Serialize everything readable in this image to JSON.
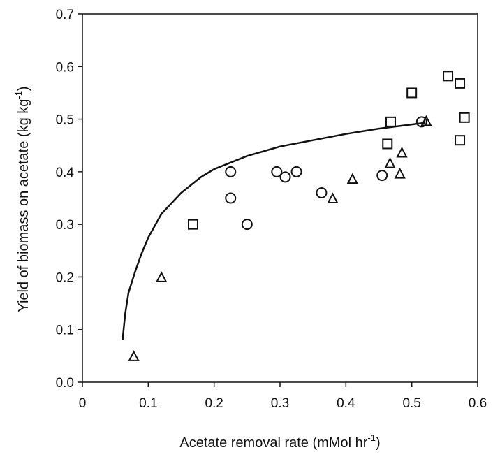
{
  "chart_data": {
    "type": "scatter",
    "title": "",
    "xlabel": "Acetate removal rate (mMol hr",
    "xlabel_sup": "-1",
    "xlabel_end": ")",
    "ylabel": "Yield of biomass on acetate (kg kg",
    "ylabel_sup": "-1",
    "ylabel_end": ")",
    "xlim": [
      0,
      0.6
    ],
    "ylim": [
      0,
      0.7
    ],
    "x_ticks": [
      0,
      0.1,
      0.2,
      0.3,
      0.4,
      0.5,
      0.6
    ],
    "x_tick_labels": [
      "0",
      "0.1",
      "0.2",
      "0.3",
      "0.4",
      "0.5",
      "0.6"
    ],
    "y_ticks": [
      0,
      0.1,
      0.2,
      0.3,
      0.4,
      0.5,
      0.6,
      0.7
    ],
    "y_tick_labels": [
      "0.0",
      "0.1",
      "0.2",
      "0.3",
      "0.4",
      "0.5",
      "0.6",
      "0.7"
    ],
    "grid": false,
    "legend": "none",
    "series": [
      {
        "marker": "circle",
        "points": [
          [
            0.225,
            0.4
          ],
          [
            0.225,
            0.35
          ],
          [
            0.25,
            0.3
          ],
          [
            0.295,
            0.4
          ],
          [
            0.308,
            0.39
          ],
          [
            0.325,
            0.4
          ],
          [
            0.363,
            0.36
          ],
          [
            0.455,
            0.393
          ],
          [
            0.515,
            0.495
          ]
        ]
      },
      {
        "marker": "square",
        "points": [
          [
            0.168,
            0.3
          ],
          [
            0.463,
            0.453
          ],
          [
            0.468,
            0.495
          ],
          [
            0.5,
            0.55
          ],
          [
            0.555,
            0.582
          ],
          [
            0.573,
            0.568
          ],
          [
            0.573,
            0.46
          ],
          [
            0.58,
            0.503
          ]
        ]
      },
      {
        "marker": "triangle",
        "points": [
          [
            0.078,
            0.048
          ],
          [
            0.12,
            0.198
          ],
          [
            0.38,
            0.348
          ],
          [
            0.41,
            0.385
          ],
          [
            0.467,
            0.415
          ],
          [
            0.482,
            0.395
          ],
          [
            0.485,
            0.435
          ],
          [
            0.522,
            0.495
          ]
        ]
      },
      {
        "type": "line",
        "style": "solid",
        "points": [
          [
            0.061,
            0.08
          ],
          [
            0.065,
            0.13
          ],
          [
            0.07,
            0.17
          ],
          [
            0.08,
            0.21
          ],
          [
            0.09,
            0.245
          ],
          [
            0.1,
            0.275
          ],
          [
            0.12,
            0.32
          ],
          [
            0.15,
            0.36
          ],
          [
            0.18,
            0.39
          ],
          [
            0.2,
            0.405
          ],
          [
            0.25,
            0.43
          ],
          [
            0.3,
            0.448
          ],
          [
            0.35,
            0.46
          ],
          [
            0.4,
            0.472
          ],
          [
            0.45,
            0.482
          ],
          [
            0.5,
            0.49
          ],
          [
            0.52,
            0.493
          ]
        ]
      }
    ]
  }
}
